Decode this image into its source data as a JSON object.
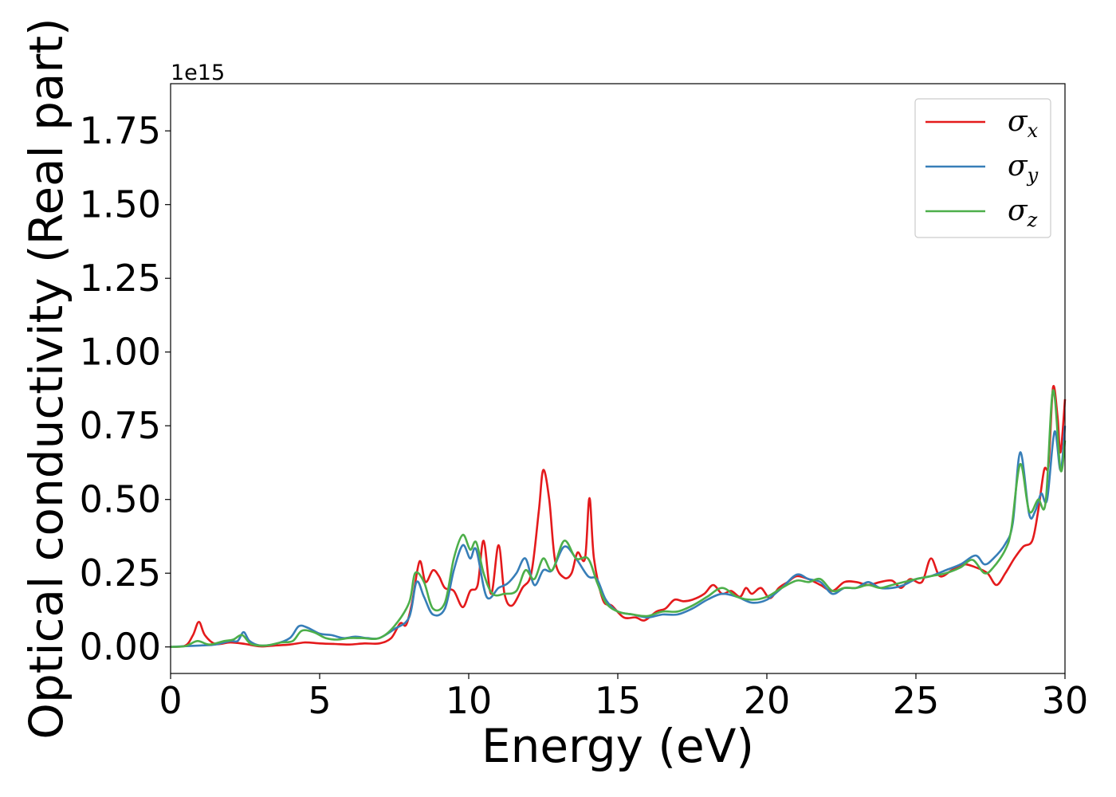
{
  "chart_data": {
    "type": "line",
    "xlabel": "Energy (eV)",
    "ylabel": "Optical conductivity (Real part)",
    "y_offset_label": "1e15",
    "xlim": [
      0,
      30
    ],
    "ylim": [
      -0.09,
      1.91
    ],
    "x_ticks": [
      0,
      5,
      10,
      15,
      20,
      25,
      30
    ],
    "x_tick_labels": [
      "0",
      "5",
      "10",
      "15",
      "20",
      "25",
      "30"
    ],
    "y_ticks": [
      0.0,
      0.25,
      0.5,
      0.75,
      1.0,
      1.25,
      1.5,
      1.75
    ],
    "y_tick_labels": [
      "0.00",
      "0.25",
      "0.50",
      "0.75",
      "1.00",
      "1.25",
      "1.50",
      "1.75"
    ],
    "grid": false,
    "legend_position": "top-right",
    "series": [
      {
        "name": "σx",
        "symbol": "σ",
        "subscript": "x",
        "color": "#e41a1c",
        "points": [
          [
            0,
            0
          ],
          [
            0.5,
            0.005
          ],
          [
            0.75,
            0.04
          ],
          [
            0.95,
            0.085
          ],
          [
            1.15,
            0.04
          ],
          [
            1.5,
            0.01
          ],
          [
            2,
            0.015
          ],
          [
            2.5,
            0.01
          ],
          [
            3,
            0.002
          ],
          [
            3.5,
            0.005
          ],
          [
            4,
            0.008
          ],
          [
            4.5,
            0.015
          ],
          [
            5,
            0.012
          ],
          [
            5.5,
            0.01
          ],
          [
            6,
            0.008
          ],
          [
            6.5,
            0.012
          ],
          [
            7,
            0.012
          ],
          [
            7.4,
            0.03
          ],
          [
            7.7,
            0.08
          ],
          [
            7.9,
            0.075
          ],
          [
            8.1,
            0.15
          ],
          [
            8.35,
            0.29
          ],
          [
            8.55,
            0.22
          ],
          [
            8.8,
            0.26
          ],
          [
            9,
            0.24
          ],
          [
            9.2,
            0.2
          ],
          [
            9.5,
            0.19
          ],
          [
            9.8,
            0.135
          ],
          [
            10.05,
            0.19
          ],
          [
            10.3,
            0.21
          ],
          [
            10.5,
            0.36
          ],
          [
            10.75,
            0.18
          ],
          [
            11,
            0.345
          ],
          [
            11.2,
            0.18
          ],
          [
            11.45,
            0.14
          ],
          [
            11.8,
            0.2
          ],
          [
            12.1,
            0.25
          ],
          [
            12.35,
            0.46
          ],
          [
            12.5,
            0.6
          ],
          [
            12.7,
            0.5
          ],
          [
            12.9,
            0.29
          ],
          [
            13.2,
            0.235
          ],
          [
            13.45,
            0.25
          ],
          [
            13.65,
            0.32
          ],
          [
            13.9,
            0.3
          ],
          [
            14.05,
            0.505
          ],
          [
            14.2,
            0.3
          ],
          [
            14.5,
            0.16
          ],
          [
            14.8,
            0.14
          ],
          [
            15.2,
            0.1
          ],
          [
            15.6,
            0.1
          ],
          [
            15.9,
            0.09
          ],
          [
            16.3,
            0.12
          ],
          [
            16.6,
            0.13
          ],
          [
            16.9,
            0.16
          ],
          [
            17.2,
            0.155
          ],
          [
            17.5,
            0.16
          ],
          [
            17.9,
            0.18
          ],
          [
            18.2,
            0.21
          ],
          [
            18.5,
            0.18
          ],
          [
            18.8,
            0.19
          ],
          [
            19.1,
            0.17
          ],
          [
            19.3,
            0.2
          ],
          [
            19.5,
            0.18
          ],
          [
            19.8,
            0.2
          ],
          [
            20.1,
            0.165
          ],
          [
            20.4,
            0.2
          ],
          [
            20.7,
            0.22
          ],
          [
            21,
            0.24
          ],
          [
            21.4,
            0.23
          ],
          [
            21.8,
            0.21
          ],
          [
            22.2,
            0.19
          ],
          [
            22.6,
            0.22
          ],
          [
            23,
            0.22
          ],
          [
            23.4,
            0.21
          ],
          [
            23.8,
            0.22
          ],
          [
            24.2,
            0.225
          ],
          [
            24.5,
            0.2
          ],
          [
            24.8,
            0.23
          ],
          [
            25.2,
            0.22
          ],
          [
            25.5,
            0.3
          ],
          [
            25.8,
            0.24
          ],
          [
            26.2,
            0.26
          ],
          [
            26.6,
            0.28
          ],
          [
            27,
            0.27
          ],
          [
            27.4,
            0.25
          ],
          [
            27.7,
            0.21
          ],
          [
            28,
            0.25
          ],
          [
            28.3,
            0.3
          ],
          [
            28.6,
            0.34
          ],
          [
            28.9,
            0.36
          ],
          [
            29.1,
            0.46
          ],
          [
            29.3,
            0.6
          ],
          [
            29.45,
            0.62
          ],
          [
            29.6,
            0.88
          ],
          [
            29.75,
            0.78
          ],
          [
            29.85,
            0.66
          ],
          [
            30,
            0.84
          ]
        ]
      },
      {
        "name": "σy",
        "symbol": "σ",
        "subscript": "y",
        "color": "#377eb8",
        "points": [
          [
            0,
            0
          ],
          [
            1,
            0.005
          ],
          [
            1.5,
            0.008
          ],
          [
            2,
            0.02
          ],
          [
            2.25,
            0.02
          ],
          [
            2.45,
            0.05
          ],
          [
            2.65,
            0.02
          ],
          [
            3,
            0.005
          ],
          [
            3.5,
            0.01
          ],
          [
            4,
            0.03
          ],
          [
            4.3,
            0.07
          ],
          [
            4.6,
            0.065
          ],
          [
            5,
            0.045
          ],
          [
            5.4,
            0.04
          ],
          [
            5.8,
            0.03
          ],
          [
            6.2,
            0.035
          ],
          [
            6.6,
            0.03
          ],
          [
            7,
            0.03
          ],
          [
            7.5,
            0.06
          ],
          [
            8,
            0.1
          ],
          [
            8.25,
            0.22
          ],
          [
            8.5,
            0.17
          ],
          [
            8.8,
            0.11
          ],
          [
            9.2,
            0.13
          ],
          [
            9.5,
            0.26
          ],
          [
            9.8,
            0.345
          ],
          [
            10.05,
            0.3
          ],
          [
            10.25,
            0.33
          ],
          [
            10.6,
            0.17
          ],
          [
            11,
            0.2
          ],
          [
            11.3,
            0.215
          ],
          [
            11.6,
            0.25
          ],
          [
            11.9,
            0.3
          ],
          [
            12.2,
            0.21
          ],
          [
            12.5,
            0.26
          ],
          [
            12.8,
            0.26
          ],
          [
            13.2,
            0.34
          ],
          [
            13.6,
            0.3
          ],
          [
            14,
            0.24
          ],
          [
            14.3,
            0.23
          ],
          [
            14.6,
            0.16
          ],
          [
            15,
            0.12
          ],
          [
            15.5,
            0.11
          ],
          [
            16,
            0.1
          ],
          [
            16.5,
            0.11
          ],
          [
            17,
            0.11
          ],
          [
            17.5,
            0.13
          ],
          [
            18,
            0.16
          ],
          [
            18.5,
            0.18
          ],
          [
            19,
            0.17
          ],
          [
            19.5,
            0.15
          ],
          [
            20,
            0.16
          ],
          [
            20.5,
            0.2
          ],
          [
            21,
            0.245
          ],
          [
            21.4,
            0.23
          ],
          [
            21.8,
            0.22
          ],
          [
            22.2,
            0.18
          ],
          [
            22.6,
            0.2
          ],
          [
            23,
            0.2
          ],
          [
            23.4,
            0.22
          ],
          [
            23.8,
            0.2
          ],
          [
            24.2,
            0.2
          ],
          [
            24.6,
            0.21
          ],
          [
            25,
            0.23
          ],
          [
            25.5,
            0.24
          ],
          [
            26,
            0.26
          ],
          [
            26.5,
            0.28
          ],
          [
            27,
            0.31
          ],
          [
            27.3,
            0.28
          ],
          [
            27.6,
            0.3
          ],
          [
            28,
            0.35
          ],
          [
            28.25,
            0.42
          ],
          [
            28.5,
            0.66
          ],
          [
            28.8,
            0.45
          ],
          [
            29,
            0.46
          ],
          [
            29.2,
            0.52
          ],
          [
            29.4,
            0.5
          ],
          [
            29.65,
            0.73
          ],
          [
            29.85,
            0.6
          ],
          [
            30,
            0.75
          ]
        ]
      },
      {
        "name": "σz",
        "symbol": "σ",
        "subscript": "z",
        "color": "#4daf4a",
        "points": [
          [
            0,
            0
          ],
          [
            0.5,
            0.003
          ],
          [
            0.9,
            0.02
          ],
          [
            1.3,
            0.008
          ],
          [
            1.8,
            0.02
          ],
          [
            2.1,
            0.025
          ],
          [
            2.4,
            0.04
          ],
          [
            2.7,
            0.01
          ],
          [
            3.2,
            0.005
          ],
          [
            3.7,
            0.015
          ],
          [
            4.1,
            0.02
          ],
          [
            4.4,
            0.055
          ],
          [
            4.8,
            0.05
          ],
          [
            5.2,
            0.03
          ],
          [
            5.6,
            0.025
          ],
          [
            6,
            0.03
          ],
          [
            6.4,
            0.03
          ],
          [
            7,
            0.03
          ],
          [
            7.5,
            0.07
          ],
          [
            8,
            0.15
          ],
          [
            8.2,
            0.25
          ],
          [
            8.5,
            0.22
          ],
          [
            8.8,
            0.13
          ],
          [
            9.2,
            0.15
          ],
          [
            9.5,
            0.3
          ],
          [
            9.8,
            0.38
          ],
          [
            10.05,
            0.33
          ],
          [
            10.25,
            0.355
          ],
          [
            10.5,
            0.25
          ],
          [
            10.8,
            0.18
          ],
          [
            11.2,
            0.18
          ],
          [
            11.6,
            0.19
          ],
          [
            11.9,
            0.26
          ],
          [
            12.2,
            0.23
          ],
          [
            12.5,
            0.3
          ],
          [
            12.8,
            0.26
          ],
          [
            13.2,
            0.36
          ],
          [
            13.6,
            0.3
          ],
          [
            14,
            0.3
          ],
          [
            14.3,
            0.22
          ],
          [
            14.6,
            0.15
          ],
          [
            15,
            0.12
          ],
          [
            15.5,
            0.11
          ],
          [
            16,
            0.105
          ],
          [
            16.5,
            0.12
          ],
          [
            17,
            0.12
          ],
          [
            17.5,
            0.14
          ],
          [
            18,
            0.17
          ],
          [
            18.5,
            0.2
          ],
          [
            19,
            0.17
          ],
          [
            19.5,
            0.16
          ],
          [
            20,
            0.17
          ],
          [
            20.5,
            0.2
          ],
          [
            21,
            0.225
          ],
          [
            21.4,
            0.22
          ],
          [
            21.8,
            0.23
          ],
          [
            22.2,
            0.19
          ],
          [
            22.6,
            0.2
          ],
          [
            23,
            0.2
          ],
          [
            23.4,
            0.21
          ],
          [
            23.8,
            0.2
          ],
          [
            24.2,
            0.21
          ],
          [
            24.6,
            0.22
          ],
          [
            25,
            0.23
          ],
          [
            25.5,
            0.24
          ],
          [
            26,
            0.25
          ],
          [
            26.5,
            0.27
          ],
          [
            26.9,
            0.295
          ],
          [
            27.3,
            0.25
          ],
          [
            27.6,
            0.27
          ],
          [
            28,
            0.33
          ],
          [
            28.2,
            0.4
          ],
          [
            28.5,
            0.62
          ],
          [
            28.8,
            0.46
          ],
          [
            29.1,
            0.5
          ],
          [
            29.35,
            0.49
          ],
          [
            29.6,
            0.87
          ],
          [
            29.85,
            0.6
          ],
          [
            30,
            0.7
          ]
        ]
      }
    ]
  }
}
